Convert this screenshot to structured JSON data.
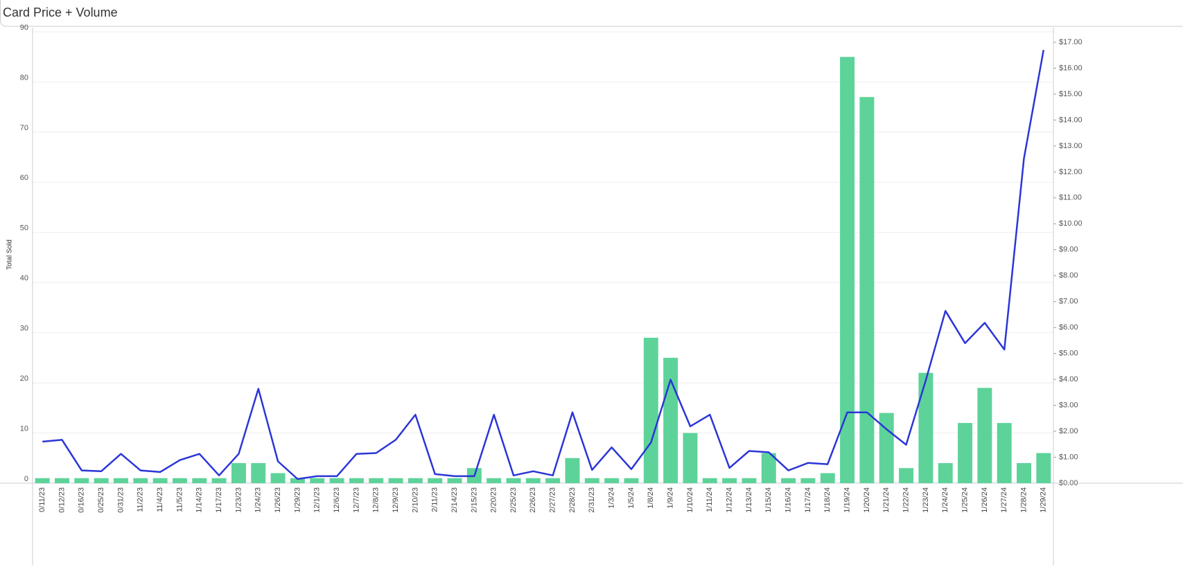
{
  "chart_data": {
    "type": "bar-line",
    "title": "Card Price + Volume",
    "y_label": "Total Sold",
    "categories": [
      "0/11/23",
      "0/12/23",
      "0/16/23",
      "0/25/23",
      "0/31/23",
      "11/2/23",
      "11/4/23",
      "11/5/23",
      "1/14/23",
      "1/17/23",
      "1/23/23",
      "1/24/23",
      "1/26/23",
      "1/29/23",
      "12/1/23",
      "12/6/23",
      "12/7/23",
      "12/8/23",
      "12/9/23",
      "2/10/23",
      "2/11/23",
      "2/14/23",
      "2/15/23",
      "2/20/23",
      "2/25/23",
      "2/26/23",
      "2/27/23",
      "2/28/23",
      "2/31/23",
      "1/3/24",
      "1/5/24",
      "1/8/24",
      "1/9/24",
      "1/10/24",
      "1/11/24",
      "1/12/24",
      "1/13/24",
      "1/15/24",
      "1/16/24",
      "1/17/24",
      "1/18/24",
      "1/19/24",
      "1/20/24",
      "1/21/24",
      "1/22/24",
      "1/23/24",
      "1/24/24",
      "1/25/24",
      "1/26/24",
      "1/27/24",
      "1/28/24",
      "1/29/24"
    ],
    "series": [
      {
        "name": "Total Sold",
        "type": "bar",
        "color": "#5dd39a",
        "values": [
          1,
          1,
          1,
          1,
          1,
          1,
          1,
          1,
          1,
          1,
          4,
          4,
          2,
          1,
          1,
          1,
          1,
          1,
          1,
          1,
          1,
          1,
          3,
          1,
          1,
          1,
          1,
          5,
          1,
          1,
          1,
          29,
          25,
          10,
          1,
          1,
          1,
          6,
          1,
          1,
          2,
          85,
          77,
          14,
          3,
          22,
          4,
          12,
          19,
          12,
          4,
          6
        ]
      },
      {
        "name": "Price",
        "type": "line",
        "axis": "y2",
        "color": "#2b35d6",
        "values": [
          1.6,
          1.67,
          0.49,
          0.46,
          1.13,
          0.49,
          0.43,
          0.89,
          1.13,
          0.3,
          1.13,
          3.64,
          0.84,
          0.16,
          0.27,
          0.27,
          1.13,
          1.16,
          1.67,
          2.64,
          0.35,
          0.27,
          0.27,
          2.64,
          0.3,
          0.46,
          0.3,
          2.73,
          0.51,
          1.38,
          0.54,
          1.57,
          3.99,
          2.19,
          2.64,
          0.59,
          1.24,
          1.19,
          0.49,
          0.78,
          0.73,
          2.73,
          2.73,
          2.08,
          1.48,
          3.97,
          6.64,
          5.4,
          6.18,
          5.15,
          12.52,
          16.7
        ]
      }
    ],
    "ylim": [
      0,
      90
    ],
    "yticks": [
      0,
      10,
      20,
      30,
      40,
      50,
      60,
      70,
      80,
      90
    ],
    "y2lim": [
      0,
      17.4
    ],
    "y2ticks": [
      {
        "value": 0,
        "label": "$0.00"
      },
      {
        "value": 1,
        "label": "$1.00"
      },
      {
        "value": 2,
        "label": "$2.00"
      },
      {
        "value": 3,
        "label": "$3.00"
      },
      {
        "value": 4,
        "label": "$4.00"
      },
      {
        "value": 5,
        "label": "$5.00"
      },
      {
        "value": 6,
        "label": "$6.00"
      },
      {
        "value": 7,
        "label": "$7.00"
      },
      {
        "value": 8,
        "label": "$8.00"
      },
      {
        "value": 9,
        "label": "$9.00"
      },
      {
        "value": 10,
        "label": "$10.00"
      },
      {
        "value": 11,
        "label": "$11.00"
      },
      {
        "value": 12,
        "label": "$12.00"
      },
      {
        "value": 13,
        "label": "$13.00"
      },
      {
        "value": 14,
        "label": "$14.00"
      },
      {
        "value": 15,
        "label": "$15.00"
      },
      {
        "value": 16,
        "label": "$16.00"
      },
      {
        "value": 17,
        "label": "$17.00"
      }
    ],
    "grid": true
  }
}
